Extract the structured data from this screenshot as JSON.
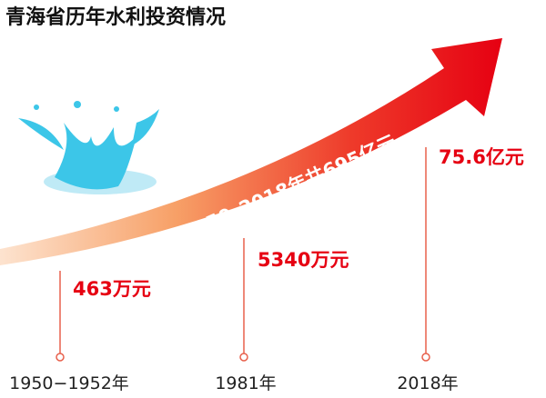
{
  "title": "青海省历年水利投资情况",
  "arrow_label": "1950–2018年共695亿元",
  "milestones": [
    {
      "year": "1950−1952年",
      "amount": "463万元"
    },
    {
      "year": "1981年",
      "amount": "5340万元"
    },
    {
      "year": "2018年",
      "amount": "75.6亿元"
    }
  ]
}
